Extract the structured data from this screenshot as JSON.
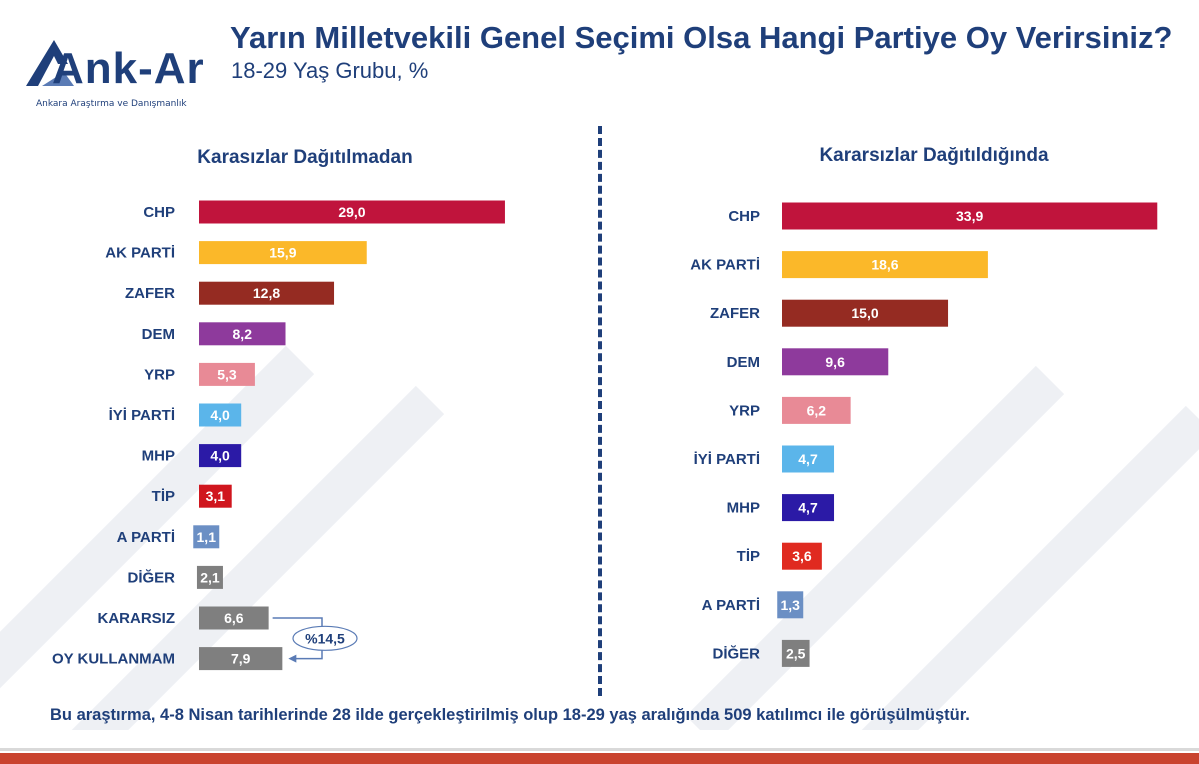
{
  "header": {
    "title": "Yarın Milletvekili Genel Seçimi Olsa Hangi Partiye Oy Verirsiniz?",
    "subtitle": "18-29 Yaş Grubu, %"
  },
  "logo": {
    "name": "Ank-Ar",
    "tagline": "Ankara Araştırma ve Danışmanlık",
    "color": "#1f3f7a"
  },
  "footer": {
    "text": "Bu araştırma, 4-8 Nisan tarihlerinde 28 ilde gerçekleştirilmiş olup 18-29 yaş aralığında 509 katılımcı ile görüşülmüştür."
  },
  "chart_data": [
    {
      "type": "bar",
      "orientation": "horizontal",
      "title": "Karasızlar Dağıtılmadan",
      "categories": [
        "CHP",
        "AK PARTİ",
        "ZAFER",
        "DEM",
        "YRP",
        "İYİ PARTİ",
        "MHP",
        "TİP",
        "A PARTİ",
        "DİĞER",
        "KARARSIZ",
        "OY KULLANMAM"
      ],
      "values": [
        29.0,
        15.9,
        12.8,
        8.2,
        5.3,
        4.0,
        4.0,
        3.1,
        1.1,
        2.1,
        6.6,
        7.9
      ],
      "value_labels": [
        "29,0",
        "15,9",
        "12,8",
        "8,2",
        "5,3",
        "4,0",
        "4,0",
        "3,1",
        "1,1",
        "2,1",
        "6,6",
        "7,9"
      ],
      "colors": [
        "#c0143c",
        "#fbb829",
        "#952b22",
        "#8e3a9c",
        "#e88a96",
        "#5bb5ea",
        "#2b1aa6",
        "#d0161e",
        "#6b8fc4",
        "#7f7f7f",
        "#7f7f7f",
        "#7f7f7f"
      ],
      "annotation": {
        "text": "%14,5",
        "applies_to": [
          "KARARSIZ",
          "OY KULLANMAM"
        ]
      }
    },
    {
      "type": "bar",
      "orientation": "horizontal",
      "title": "Kararsızlar Dağıtıldığında",
      "categories": [
        "CHP",
        "AK PARTİ",
        "ZAFER",
        "DEM",
        "YRP",
        "İYİ PARTİ",
        "MHP",
        "TİP",
        "A PARTİ",
        "DİĞER"
      ],
      "values": [
        33.9,
        18.6,
        15.0,
        9.6,
        6.2,
        4.7,
        4.7,
        3.6,
        1.3,
        2.5
      ],
      "value_labels": [
        "33,9",
        "18,6",
        "15,0",
        "9,6",
        "6,2",
        "4,7",
        "4,7",
        "3,6",
        "1,3",
        "2,5"
      ],
      "colors": [
        "#c0143c",
        "#fbb829",
        "#952b22",
        "#8e3a9c",
        "#e88a96",
        "#5bb5ea",
        "#2b1aa6",
        "#e02a20",
        "#6b8fc4",
        "#7f7f7f"
      ]
    }
  ]
}
